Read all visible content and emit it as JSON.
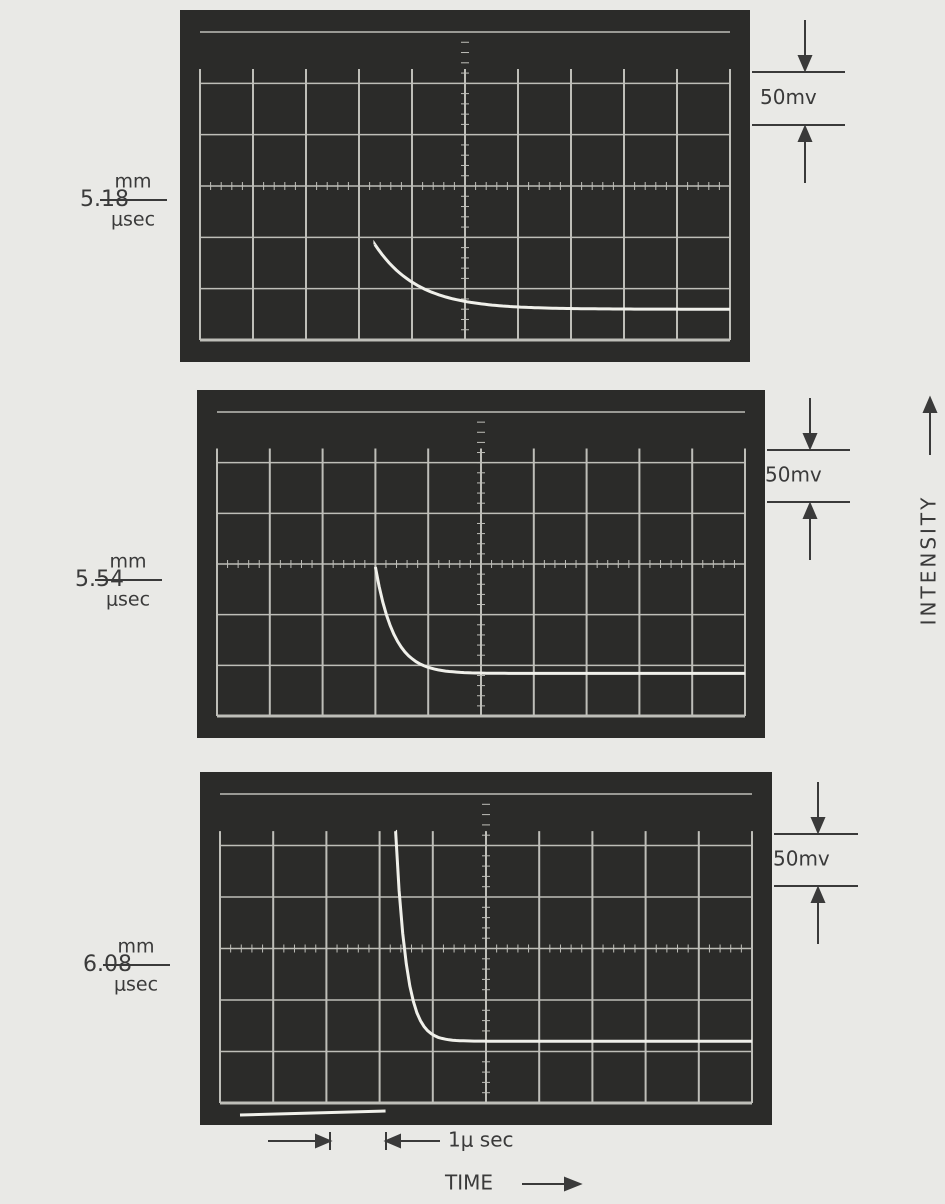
{
  "panels": [
    {
      "velocity": "5.18",
      "unit_top": "mm",
      "unit_bottom": "μsec",
      "scale": "50mv"
    },
    {
      "velocity": "5.54",
      "unit_top": "mm",
      "unit_bottom": "μsec",
      "scale": "50mv"
    },
    {
      "velocity": "6.08",
      "unit_top": "mm",
      "unit_bottom": "μsec",
      "scale": "50mv"
    }
  ],
  "y_label": "INTENSITY",
  "x_label": "TIME",
  "time_scale": "1μ sec"
}
